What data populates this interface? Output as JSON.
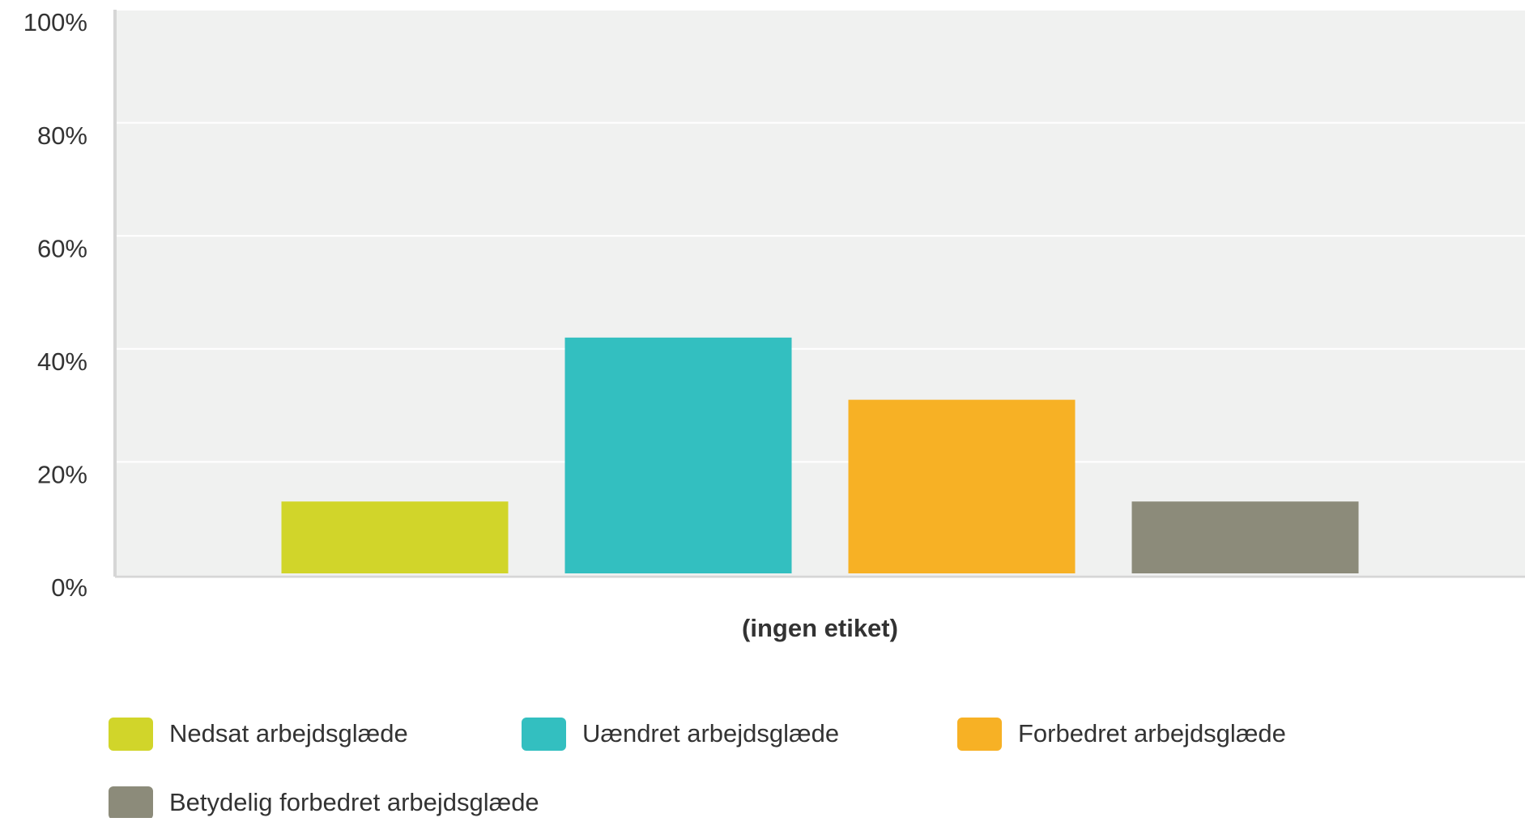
{
  "chart_data": {
    "type": "bar",
    "categories": [
      "(ingen etiket)"
    ],
    "series": [
      {
        "name": "Nedsat arbejdsglæde",
        "color": "#d1d52a",
        "values": [
          13
        ]
      },
      {
        "name": "Uændret arbejdsglæde",
        "color": "#33bfc0",
        "values": [
          42
        ]
      },
      {
        "name": "Forbedret arbejdsglæde",
        "color": "#f7b125",
        "values": [
          31
        ]
      },
      {
        "name": "Betydelig forbedret arbejdsglæde",
        "color": "#8c8b7a",
        "values": [
          13
        ]
      }
    ],
    "ylim": [
      0,
      100
    ],
    "yticks": [
      {
        "value": 0,
        "label": "0%"
      },
      {
        "value": 20,
        "label": "20%"
      },
      {
        "value": 40,
        "label": "40%"
      },
      {
        "value": 60,
        "label": "60%"
      },
      {
        "value": 80,
        "label": "80%"
      },
      {
        "value": 100,
        "label": "100%"
      }
    ],
    "grid": true,
    "legend": "bottom"
  }
}
